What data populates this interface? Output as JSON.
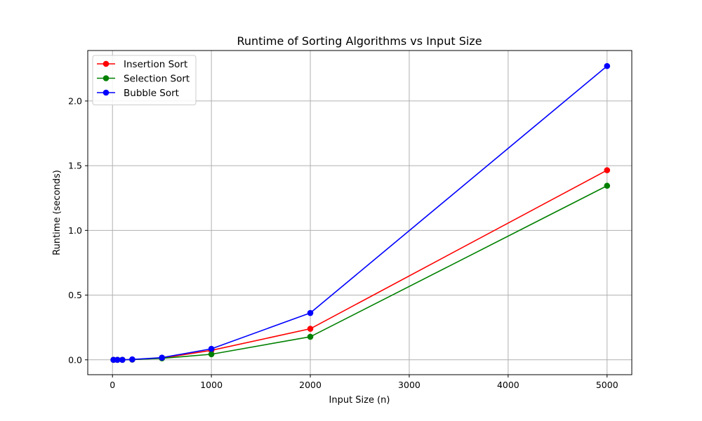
{
  "chart_data": {
    "type": "line",
    "title": "Runtime of Sorting Algorithms vs Input Size",
    "xlabel": "Input Size (n)",
    "ylabel": "Runtime (seconds)",
    "xlim": [
      -250,
      5250
    ],
    "ylim": [
      -0.115,
      2.39
    ],
    "x_ticks": [
      0,
      1000,
      2000,
      3000,
      4000,
      5000
    ],
    "y_ticks": [
      0.0,
      0.5,
      1.0,
      1.5,
      2.0
    ],
    "x_tick_labels": [
      "0",
      "1000",
      "2000",
      "3000",
      "4000",
      "5000"
    ],
    "y_tick_labels": [
      "0.0",
      "0.5",
      "1.0",
      "1.5",
      "2.0"
    ],
    "grid": true,
    "legend_position": "top-left",
    "x": [
      10,
      50,
      100,
      200,
      500,
      1000,
      2000,
      5000
    ],
    "series": [
      {
        "name": "Insertion Sort",
        "color": "#ff0000",
        "values": [
          0.0,
          0.0,
          0.0,
          0.002,
          0.013,
          0.073,
          0.24,
          1.465
        ]
      },
      {
        "name": "Selection Sort",
        "color": "#008000",
        "values": [
          0.0,
          0.0,
          0.0,
          0.002,
          0.011,
          0.043,
          0.178,
          1.345
        ]
      },
      {
        "name": "Bubble Sort",
        "color": "#0000ff",
        "values": [
          0.0,
          0.0,
          0.0,
          0.003,
          0.017,
          0.085,
          0.362,
          2.27
        ]
      }
    ]
  }
}
